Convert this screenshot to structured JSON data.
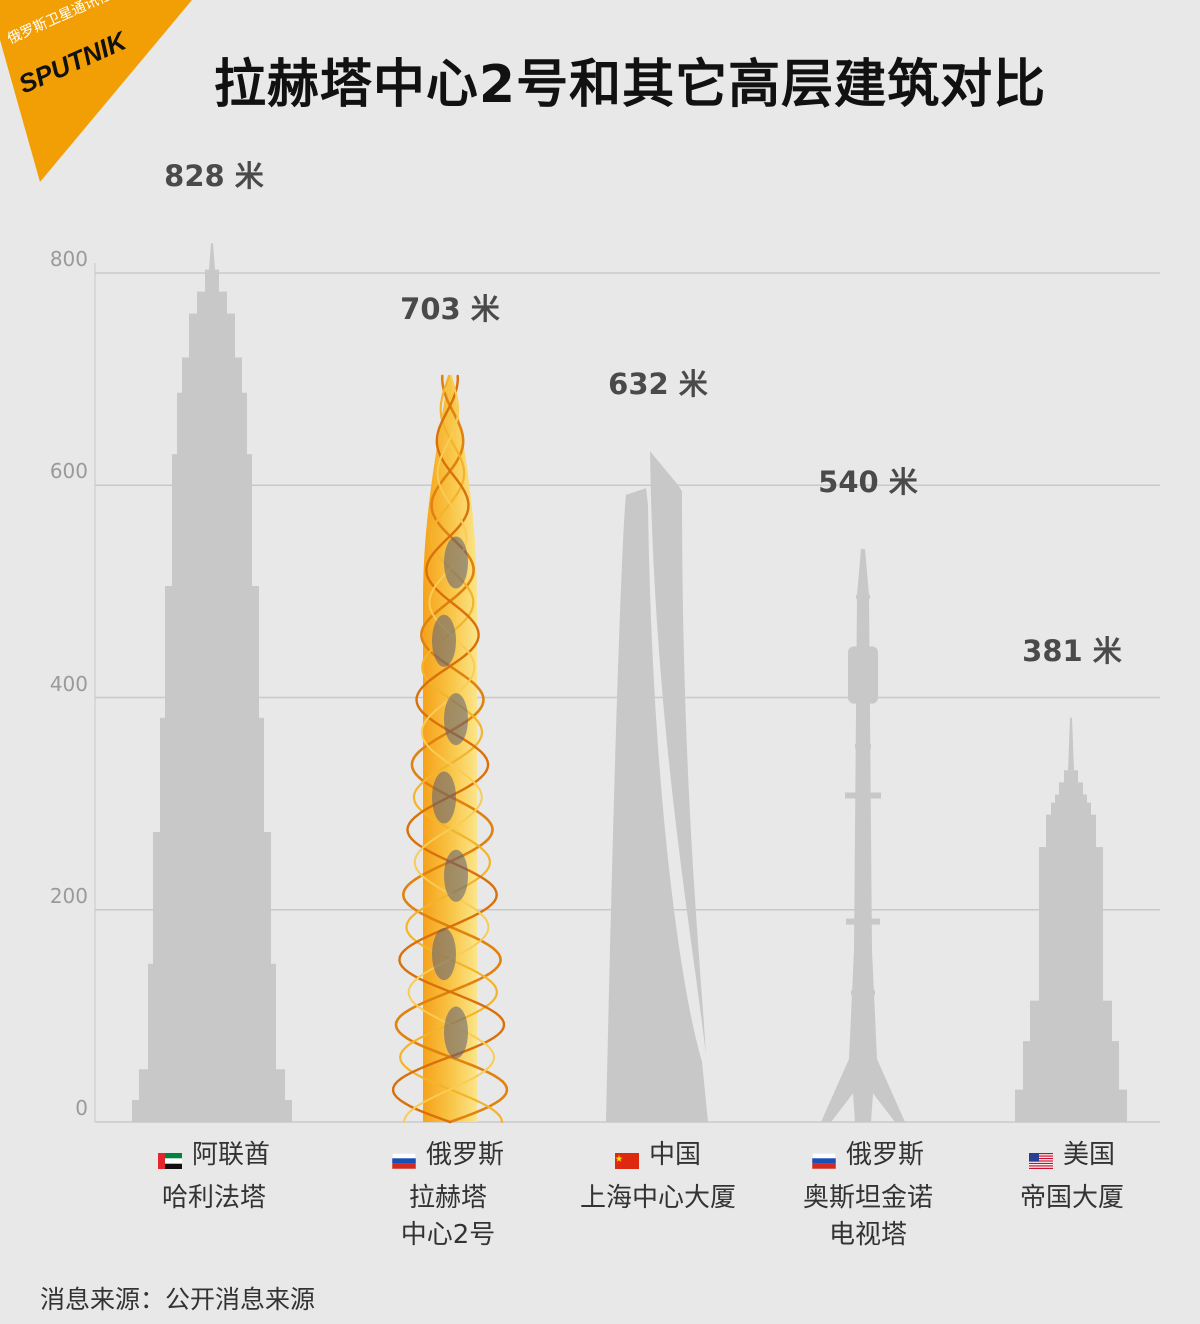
{
  "logo": {
    "subtitle": "俄罗斯卫星通讯社",
    "name": "SPUTNIK",
    "color": "#f29f05"
  },
  "title": "拉赫塔中心2号和其它高层建筑对比",
  "source": "消息来源：公开消息来源",
  "chart_data": {
    "type": "bar",
    "categories": [
      "哈利法塔",
      "拉赫塔中心2号",
      "上海中心大厦",
      "奥斯坦金诺电视塔",
      "帝国大厦"
    ],
    "values": [
      828,
      703,
      632,
      540,
      381
    ],
    "ylim": [
      0,
      800
    ],
    "yticks": [
      0,
      200,
      400,
      600,
      800
    ],
    "grid": true,
    "colors": {
      "bar": "#c8c8c8",
      "highlight": "#f5a623",
      "grid": "#c9c9c9"
    },
    "buildings": [
      {
        "value_label": "828 米",
        "country": "阿联酋",
        "flag": "uae",
        "name": "哈利法塔",
        "highlight": false
      },
      {
        "value_label": "703 米",
        "country": "俄罗斯",
        "flag": "russia",
        "name": "拉赫塔\n中心2号",
        "highlight": true
      },
      {
        "value_label": "632 米",
        "country": "中国",
        "flag": "china",
        "name": "上海中心大厦",
        "highlight": false
      },
      {
        "value_label": "540 米",
        "country": "俄罗斯",
        "flag": "russia",
        "name": "奥斯坦金诺\n电视塔",
        "highlight": false
      },
      {
        "value_label": "381 米",
        "country": "美国",
        "flag": "usa",
        "name": "帝国大厦",
        "highlight": false
      }
    ]
  }
}
